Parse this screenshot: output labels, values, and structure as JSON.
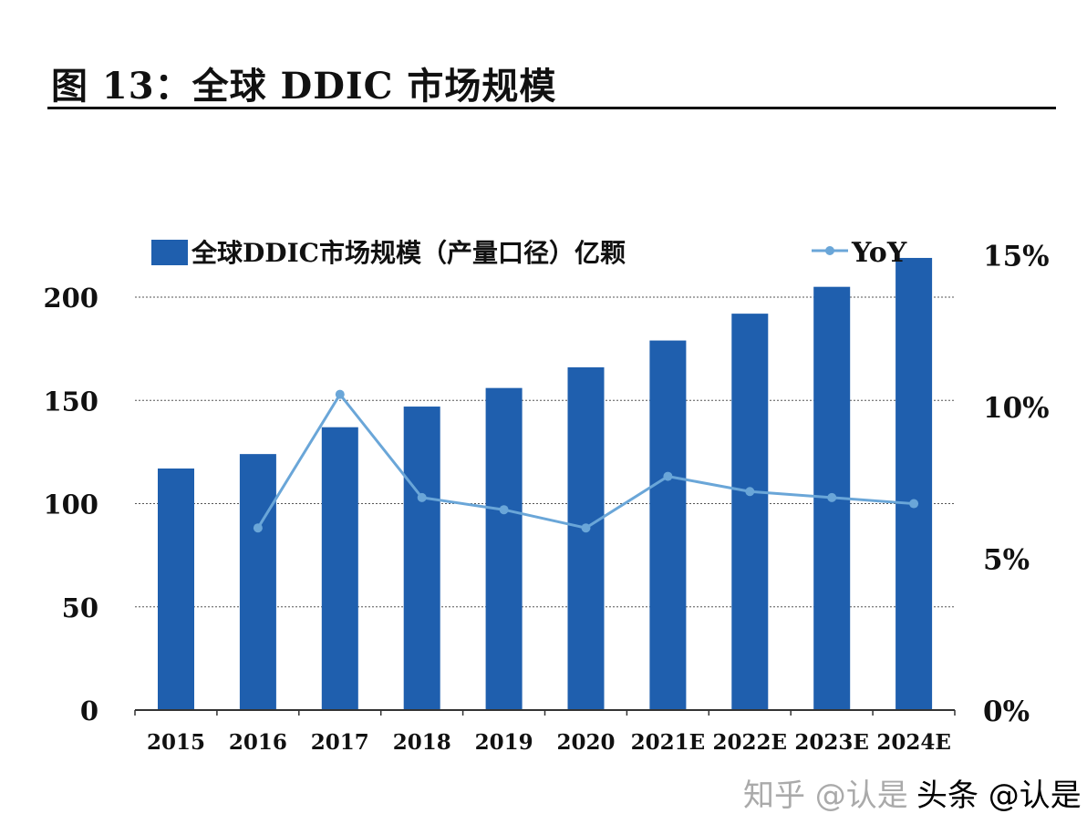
{
  "title": "图 13：全球 DDIC 市场规模",
  "colors": {
    "bar": "#1f5fae",
    "line": "#6aa6d8",
    "grid": "#555555",
    "axis": "#333333"
  },
  "watermark": {
    "zhihu": "知乎 @认是",
    "toutiao": "头条 @认是"
  },
  "chart_data": {
    "type": "bar+line",
    "categories": [
      "2015",
      "2016",
      "2017",
      "2018",
      "2019",
      "2020",
      "2021E",
      "2022E",
      "2023E",
      "2024E"
    ],
    "series": [
      {
        "name": "全球DDIC市场规模（产量口径）亿颗",
        "type": "bar",
        "axis": "left",
        "values": [
          117,
          124,
          137,
          147,
          156,
          166,
          179,
          192,
          205,
          219
        ]
      },
      {
        "name": "YoY",
        "type": "line",
        "axis": "right",
        "values": [
          null,
          6.0,
          10.4,
          7.0,
          6.6,
          6.0,
          7.7,
          7.2,
          7.0,
          6.8
        ]
      }
    ],
    "y_left": {
      "range": [
        0,
        200
      ],
      "ticks": [
        "0",
        "50",
        "100",
        "150",
        "200"
      ],
      "tick_values": [
        0,
        50,
        100,
        150,
        200
      ]
    },
    "y_right": {
      "range": [
        0,
        15
      ],
      "ticks": [
        "0%",
        "5%",
        "10%",
        "15%"
      ],
      "tick_values": [
        0,
        5,
        10,
        15
      ]
    },
    "grid": true,
    "legend": "top"
  }
}
